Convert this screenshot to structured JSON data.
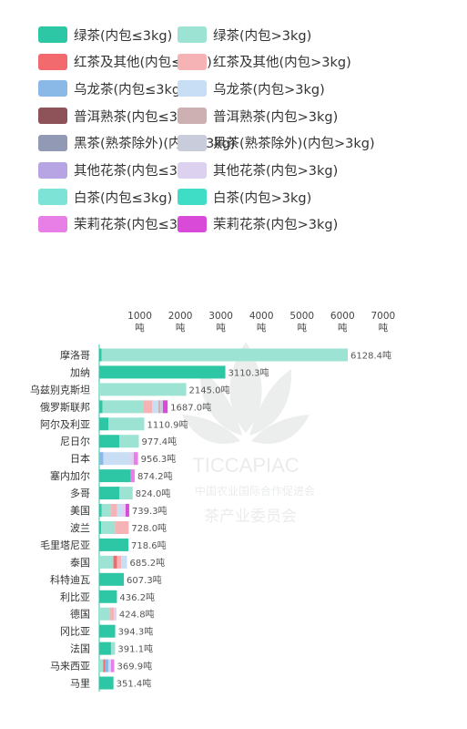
{
  "legend": [
    {
      "label": "绿茶(内包≤3kg)",
      "color": "#2ec7a6"
    },
    {
      "label": "绿茶(内包>3kg)",
      "color": "#9de3d3"
    },
    {
      "label": "红茶及其他(内包≤3kg)",
      "color": "#f26a6e"
    },
    {
      "label": "红茶及其他(内包>3kg)",
      "color": "#f6b3b5"
    },
    {
      "label": "乌龙茶(内包≤3kg)",
      "color": "#8ab9e8"
    },
    {
      "label": "乌龙茶(内包>3kg)",
      "color": "#c8def5"
    },
    {
      "label": "普洱熟茶(内包≤3kg)",
      "color": "#8e5358"
    },
    {
      "label": "普洱熟茶(内包>3kg)",
      "color": "#cdb1b2"
    },
    {
      "label": "黑茶(熟茶除外)(内包≤3kg)",
      "color": "#9299b4"
    },
    {
      "label": "黑茶(熟茶除外)(内包>3kg)",
      "color": "#c9ccdb"
    },
    {
      "label": "其他花茶(内包≤3kg)",
      "color": "#b7a4e2"
    },
    {
      "label": "其他花茶(内包>3kg)",
      "color": "#dcd2f0"
    },
    {
      "label": "白茶(内包≤3kg)",
      "color": "#7de3d6"
    },
    {
      "label": "白茶(内包>3kg)",
      "color": "#3fdcc6"
    },
    {
      "label": "茉莉花茶(内包≤3kg)",
      "color": "#e87fe6"
    },
    {
      "label": "茉莉花茶(内包>3kg)",
      "color": "#d94ad8"
    }
  ],
  "chart_data": {
    "type": "bar",
    "orientation": "horizontal",
    "stacked": true,
    "value_unit": "吨",
    "xlim": [
      0,
      7000
    ],
    "ticks": [
      1000,
      2000,
      3000,
      4000,
      5000,
      6000,
      7000
    ],
    "tick_unit": "吨",
    "categories": [
      "摩洛哥",
      "加纳",
      "乌兹别克斯坦",
      "俄罗斯联邦",
      "阿尔及利亚",
      "尼日尔",
      "日本",
      "塞内加尔",
      "多哥",
      "美国",
      "波兰",
      "毛里塔尼亚",
      "泰国",
      "科特迪瓦",
      "利比亚",
      "德国",
      "冈比亚",
      "法国",
      "马来西亚",
      "马里"
    ],
    "totals": [
      6128.4,
      3110.3,
      2145.0,
      1687.0,
      1110.9,
      977.4,
      956.3,
      874.2,
      824.0,
      739.3,
      728.0,
      718.6,
      685.2,
      607.3,
      436.2,
      424.8,
      394.3,
      391.1,
      369.9,
      351.4
    ],
    "total_labels": [
      "6128.4吨",
      "3110.3吨",
      "2145.0吨",
      "1687.0吨",
      "1110.9吨",
      "977.4吨",
      "956.3吨",
      "874.2吨",
      "824.0吨",
      "739.3吨",
      "728.0吨",
      "718.6吨",
      "685.2吨",
      "607.3吨",
      "436.2吨",
      "424.8吨",
      "394.3吨",
      "391.1吨",
      "369.9吨",
      "351.4吨"
    ],
    "segments": [
      [
        {
          "series": "绿茶(内包≤3kg)",
          "value": 60
        },
        {
          "series": "绿茶(内包>3kg)",
          "value": 6068.4
        }
      ],
      [
        {
          "series": "绿茶(内包≤3kg)",
          "value": 3110.3
        }
      ],
      [
        {
          "series": "绿茶(内包>3kg)",
          "value": 2145.0
        }
      ],
      [
        {
          "series": "绿茶(内包≤3kg)",
          "value": 80
        },
        {
          "series": "绿茶(内包>3kg)",
          "value": 1000
        },
        {
          "series": "红茶及其他(内包>3kg)",
          "value": 230
        },
        {
          "series": "乌龙茶(内包>3kg)",
          "value": 150
        },
        {
          "series": "普洱熟茶(内包>3kg)",
          "value": 50
        },
        {
          "series": "黑茶(熟茶除外)(内包>3kg)",
          "value": 60
        },
        {
          "series": "茉莉花茶(内包>3kg)",
          "value": 117
        }
      ],
      [
        {
          "series": "绿茶(内包≤3kg)",
          "value": 230
        },
        {
          "series": "绿茶(内包>3kg)",
          "value": 880.9
        }
      ],
      [
        {
          "series": "绿茶(内包≤3kg)",
          "value": 500
        },
        {
          "series": "绿茶(内包>3kg)",
          "value": 477.4
        }
      ],
      [
        {
          "series": "乌龙茶(内包≤3kg)",
          "value": 100
        },
        {
          "series": "乌龙茶(内包>3kg)",
          "value": 650
        },
        {
          "series": "其他花茶(内包>3kg)",
          "value": 100
        },
        {
          "series": "茉莉花茶(内包≤3kg)",
          "value": 106.3
        }
      ],
      [
        {
          "series": "绿茶(内包≤3kg)",
          "value": 780
        },
        {
          "series": "茉莉花茶(内包≤3kg)",
          "value": 94.2
        }
      ],
      [
        {
          "series": "绿茶(内包≤3kg)",
          "value": 500
        },
        {
          "series": "绿茶(内包>3kg)",
          "value": 324
        }
      ],
      [
        {
          "series": "绿茶(内包≤3kg)",
          "value": 60
        },
        {
          "series": "绿茶(内包>3kg)",
          "value": 230
        },
        {
          "series": "红茶及其他(内包>3kg)",
          "value": 150
        },
        {
          "series": "乌龙茶(内包>3kg)",
          "value": 100
        },
        {
          "series": "其他花茶(内包>3kg)",
          "value": 110
        },
        {
          "series": "茉莉花茶(内包>3kg)",
          "value": 89.3
        }
      ],
      [
        {
          "series": "绿茶(内包≤3kg)",
          "value": 50
        },
        {
          "series": "绿茶(内包>3kg)",
          "value": 340
        },
        {
          "series": "红茶及其他(内包>3kg)",
          "value": 338
        }
      ],
      [
        {
          "series": "绿茶(内包≤3kg)",
          "value": 718.6
        }
      ],
      [
        {
          "series": "绿茶(内包>3kg)",
          "value": 350
        },
        {
          "series": "红茶及其他(内包≤3kg)",
          "value": 90
        },
        {
          "series": "红茶及其他(内包>3kg)",
          "value": 100
        },
        {
          "series": "乌龙茶(内包>3kg)",
          "value": 145.2
        }
      ],
      [
        {
          "series": "绿茶(内包≤3kg)",
          "value": 607.3
        }
      ],
      [
        {
          "series": "绿茶(内包≤3kg)",
          "value": 436.2
        }
      ],
      [
        {
          "series": "绿茶(内包>3kg)",
          "value": 260
        },
        {
          "series": "红茶及其他(内包>3kg)",
          "value": 100
        },
        {
          "series": "其他花茶(内包>3kg)",
          "value": 64.8
        }
      ],
      [
        {
          "series": "绿茶(内包≤3kg)",
          "value": 394.3
        }
      ],
      [
        {
          "series": "绿茶(内包≤3kg)",
          "value": 291.1
        },
        {
          "series": "绿茶(内包>3kg)",
          "value": 100
        }
      ],
      [
        {
          "series": "绿茶(内包>3kg)",
          "value": 100
        },
        {
          "series": "红茶及其他(内包≤3kg)",
          "value": 50
        },
        {
          "series": "乌龙茶(内包≤3kg)",
          "value": 80
        },
        {
          "series": "乌龙茶(内包>3kg)",
          "value": 60
        },
        {
          "series": "茉莉花茶(内包≤3kg)",
          "value": 79.9
        }
      ],
      [
        {
          "series": "绿茶(内包≤3kg)",
          "value": 351.4
        }
      ]
    ]
  },
  "watermark": {
    "text": "TICCAPIAC",
    "subtitle": "中国农业国际合作促进会",
    "subtitle2": "茶产业委员会"
  }
}
